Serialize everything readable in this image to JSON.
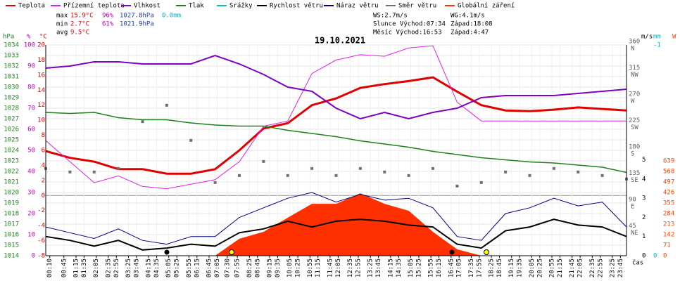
{
  "chart_data": {
    "type": "line",
    "title": "19.10.2021",
    "x_label": "čas",
    "x": [
      0,
      60,
      120,
      180,
      240,
      300,
      360,
      420,
      480,
      540,
      600,
      660,
      720,
      780,
      840,
      900,
      960,
      1020,
      1080,
      1140,
      1200,
      1260,
      1320,
      1380,
      1440
    ],
    "xlim": [
      0,
      1440
    ],
    "xticks": [
      {
        "value": 10,
        "label": "00:10"
      },
      {
        "value": 45,
        "label": "00:45"
      },
      {
        "value": 75,
        "label": "01:15"
      },
      {
        "value": 95,
        "label": "01:35"
      },
      {
        "value": 125,
        "label": "02:05"
      },
      {
        "value": 155,
        "label": "02:35"
      },
      {
        "value": 175,
        "label": "02:55"
      },
      {
        "value": 205,
        "label": "03:25"
      },
      {
        "value": 225,
        "label": "03:45"
      },
      {
        "value": 255,
        "label": "04:15"
      },
      {
        "value": 275,
        "label": "04:35"
      },
      {
        "value": 305,
        "label": "05:05"
      },
      {
        "value": 325,
        "label": "05:25"
      },
      {
        "value": 355,
        "label": "05:55"
      },
      {
        "value": 375,
        "label": "06:15"
      },
      {
        "value": 405,
        "label": "06:45"
      },
      {
        "value": 425,
        "label": "07:05"
      },
      {
        "value": 450,
        "label": "07:30"
      },
      {
        "value": 475,
        "label": "07:55"
      },
      {
        "value": 505,
        "label": "08:25"
      },
      {
        "value": 525,
        "label": "08:45"
      },
      {
        "value": 555,
        "label": "09:15"
      },
      {
        "value": 575,
        "label": "09:35"
      },
      {
        "value": 605,
        "label": "10:05"
      },
      {
        "value": 625,
        "label": "10:25"
      },
      {
        "value": 655,
        "label": "10:55"
      },
      {
        "value": 675,
        "label": "11:15"
      },
      {
        "value": 705,
        "label": "11:45"
      },
      {
        "value": 725,
        "label": "12:05"
      },
      {
        "value": 755,
        "label": "12:35"
      },
      {
        "value": 775,
        "label": "12:55"
      },
      {
        "value": 805,
        "label": "13:25"
      },
      {
        "value": 825,
        "label": "13:45"
      },
      {
        "value": 855,
        "label": "14:15"
      },
      {
        "value": 875,
        "label": "14:35"
      },
      {
        "value": 905,
        "label": "15:05"
      },
      {
        "value": 925,
        "label": "15:25"
      },
      {
        "value": 955,
        "label": "15:55"
      },
      {
        "value": 975,
        "label": "16:15"
      },
      {
        "value": 1005,
        "label": "16:45"
      },
      {
        "value": 1025,
        "label": "17:05"
      },
      {
        "value": 1055,
        "label": "17:35"
      },
      {
        "value": 1075,
        "label": "17:55"
      },
      {
        "value": 1105,
        "label": "18:25"
      },
      {
        "value": 1125,
        "label": "18:45"
      },
      {
        "value": 1155,
        "label": "19:15"
      },
      {
        "value": 1175,
        "label": "19:35"
      },
      {
        "value": 1205,
        "label": "20:05"
      },
      {
        "value": 1225,
        "label": "20:25"
      },
      {
        "value": 1255,
        "label": "20:55"
      },
      {
        "value": 1275,
        "label": "21:15"
      },
      {
        "value": 1305,
        "label": "21:45"
      },
      {
        "value": 1325,
        "label": "22:05"
      },
      {
        "value": 1355,
        "label": "22:35"
      },
      {
        "value": 1375,
        "label": "22:55"
      },
      {
        "value": 1405,
        "label": "23:25"
      },
      {
        "value": 1425,
        "label": "23:45"
      }
    ],
    "axes": {
      "hpa": {
        "unit": "hPa",
        "color": "#208020",
        "lim": [
          1014,
          1034
        ],
        "ticks": [
          1014,
          1015,
          1016,
          1017,
          1018,
          1019,
          1020,
          1021,
          1022,
          1023,
          1024,
          1025,
          1026,
          1027,
          1028,
          1029,
          1030,
          1031,
          1032,
          1033,
          1034
        ],
        "grid": true
      },
      "pct": {
        "unit": "%",
        "color": "#c000c0",
        "lim": [
          0,
          100
        ],
        "ticks": [
          0,
          10,
          20,
          30,
          40,
          50,
          60,
          70,
          80,
          90,
          100
        ]
      },
      "c": {
        "unit": "°C",
        "color": "#e00000",
        "lim": [
          -8,
          20
        ],
        "ticks": [
          -8,
          -6,
          -4,
          -2,
          0,
          2,
          4,
          6,
          8,
          10,
          12,
          14,
          16,
          18,
          20
        ],
        "zero_line": true
      },
      "dir": {
        "color": "#606060",
        "lim": [
          0,
          360
        ],
        "ticks": [
          45,
          90,
          135,
          180,
          225,
          270,
          315,
          360
        ],
        "compass": [
          "NE",
          "E",
          "SE",
          "S",
          "SW",
          "W",
          "NW",
          "N"
        ]
      },
      "ms": {
        "unit": "m/s",
        "color": "#000000",
        "lim": [
          0,
          11
        ],
        "ticks": [
          0,
          1,
          2,
          3,
          4,
          5
        ]
      },
      "mm": {
        "unit": "mm",
        "color": "#00b0c0",
        "lim": [
          0,
          -1
        ],
        "ticks": [
          0,
          -1
        ]
      },
      "w": {
        "unit": "W",
        "color": "#ff4000",
        "lim": [
          0,
          1420
        ],
        "ticks": [
          0,
          71,
          142,
          213,
          284,
          355,
          426,
          497,
          568,
          639
        ]
      }
    },
    "series": [
      {
        "name": "Globální záření",
        "color": "#ff3000",
        "axis": "w",
        "style": "area",
        "values": [
          0,
          0,
          0,
          0,
          0,
          0,
          0,
          0,
          114,
          161,
          256,
          350,
          350,
          421,
          350,
          303,
          161,
          43,
          0,
          0,
          0,
          0,
          0,
          0,
          0
        ]
      },
      {
        "name": "Teplota",
        "color": "#e00000",
        "axis": "c",
        "width": 3,
        "values": [
          5.9,
          5.0,
          4.5,
          3.5,
          3.5,
          2.9,
          2.9,
          3.5,
          6.0,
          8.9,
          9.6,
          12.0,
          12.9,
          14.3,
          14.8,
          15.2,
          15.7,
          13.8,
          12.0,
          11.3,
          11.2,
          11.4,
          11.7,
          11.5,
          11.3
        ]
      },
      {
        "name": "Přízemní teplota",
        "color": "#e020e0",
        "axis": "c",
        "width": 1,
        "values": [
          7.3,
          4.5,
          1.7,
          2.6,
          1.2,
          0.9,
          1.5,
          2.1,
          4.5,
          9.2,
          9.9,
          16.2,
          18.0,
          18.7,
          18.5,
          19.6,
          19.9,
          12.4,
          9.9,
          9.9,
          9.9,
          9.9,
          9.9,
          9.9,
          9.9
        ]
      },
      {
        "name": "Vlhkost",
        "color": "#8000c0",
        "axis": "pct",
        "width": 2,
        "values": [
          89,
          90,
          92,
          92,
          91,
          91,
          91,
          95,
          91,
          86,
          80,
          78,
          70,
          65,
          68,
          65,
          68,
          70,
          75,
          76,
          76,
          76,
          77,
          78,
          79
        ]
      },
      {
        "name": "Tlak",
        "color": "#208020",
        "axis": "hpa",
        "width": 1.5,
        "values": [
          1027.6,
          1027.5,
          1027.6,
          1027.1,
          1026.9,
          1026.9,
          1026.6,
          1026.4,
          1026.3,
          1026.3,
          1025.9,
          1025.6,
          1025.3,
          1024.9,
          1024.6,
          1024.3,
          1023.9,
          1023.6,
          1023.3,
          1023.1,
          1022.9,
          1022.8,
          1022.6,
          1022.4,
          1021.9
        ]
      },
      {
        "name": "Srážky",
        "color": "#00c0c0",
        "axis": "mm",
        "width": 1,
        "values": [
          0,
          0,
          0,
          0,
          0,
          0,
          0,
          0,
          0,
          0,
          0,
          0,
          0,
          0,
          0,
          0,
          0,
          0,
          0,
          0,
          0,
          0,
          0,
          0,
          0
        ]
      },
      {
        "name": "Rychlost větru",
        "color": "#000000",
        "axis": "ms",
        "width": 2,
        "values": [
          1.0,
          0.8,
          0.5,
          0.8,
          0.3,
          0.4,
          0.6,
          0.5,
          1.2,
          1.4,
          1.8,
          1.5,
          1.8,
          1.9,
          1.8,
          1.6,
          1.5,
          0.6,
          0.4,
          1.3,
          1.5,
          1.9,
          1.6,
          1.5,
          1.0
        ]
      },
      {
        "name": "Náraz větru",
        "color": "#000080",
        "axis": "ms",
        "width": 1,
        "values": [
          1.5,
          1.2,
          0.9,
          1.4,
          0.8,
          0.6,
          1.0,
          1.0,
          2.0,
          2.5,
          3.0,
          3.3,
          2.8,
          3.2,
          2.9,
          3.0,
          2.5,
          1.0,
          0.8,
          2.2,
          2.5,
          3.0,
          2.6,
          2.8,
          1.5
        ]
      },
      {
        "name": "Směr větru",
        "color": "#707070",
        "axis": "dir",
        "style": "points",
        "values": [
          149,
          143,
          143,
          149,
          229,
          257,
          197,
          125,
          137,
          161,
          137,
          149,
          137,
          149,
          143,
          137,
          149,
          119,
          125,
          143,
          137,
          149,
          143,
          137,
          131
        ]
      }
    ],
    "stats": [
      {
        "label": "max",
        "values": [
          "15.9°C",
          "96%",
          "1027.8hPa",
          "0.0mm"
        ]
      },
      {
        "label": "min",
        "values": [
          "2.7°C",
          "61%",
          "1021.9hPa"
        ]
      },
      {
        "label": "avg",
        "values": [
          "9.5°C"
        ]
      }
    ],
    "info": [
      [
        "WS:2.7m/s",
        "WG:4.1m/s"
      ],
      [
        "Slunce Východ:07:34",
        "Západ:18:08"
      ],
      [
        "Měsíc Východ:16:53",
        "Západ:4:47"
      ]
    ]
  }
}
